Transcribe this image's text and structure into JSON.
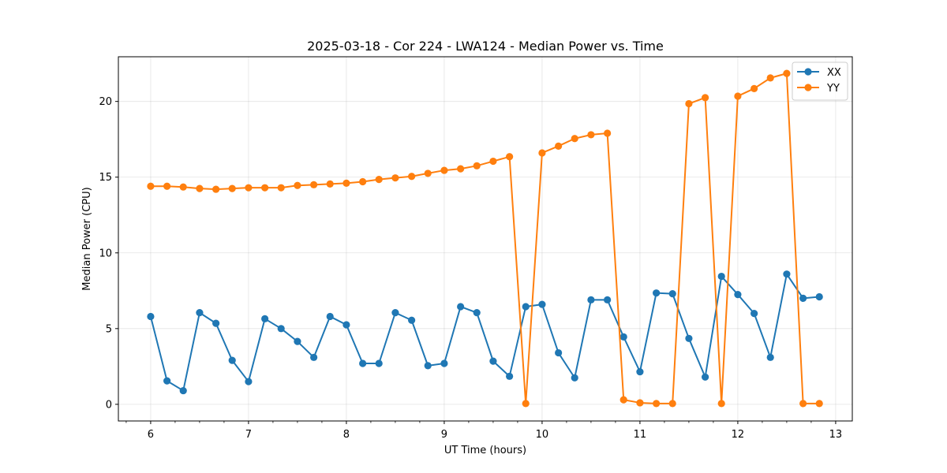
{
  "chart_data": {
    "type": "line",
    "title": "2025-03-18 - Cor 224 - LWA124 - Median Power vs. Time",
    "xlabel": "UT Time (hours)",
    "ylabel": "Median Power (CPU)",
    "xlim": [
      5.67,
      13.17
    ],
    "ylim": [
      -1.1,
      22.95
    ],
    "x_ticks": [
      6,
      7,
      8,
      9,
      10,
      11,
      12,
      13
    ],
    "y_ticks": [
      0,
      5,
      10,
      15,
      20
    ],
    "x_minor_step": 0.25,
    "grid": true,
    "legend_position": "top-right",
    "x": [
      6.0,
      6.167,
      6.333,
      6.5,
      6.667,
      6.833,
      7.0,
      7.167,
      7.333,
      7.5,
      7.667,
      7.833,
      8.0,
      8.167,
      8.333,
      8.5,
      8.667,
      8.833,
      9.0,
      9.167,
      9.333,
      9.5,
      9.667,
      9.833,
      10.0,
      10.167,
      10.333,
      10.5,
      10.667,
      10.833,
      11.0,
      11.167,
      11.333,
      11.5,
      11.667,
      11.833,
      12.0,
      12.167,
      12.333,
      12.5,
      12.667,
      12.833
    ],
    "series": [
      {
        "name": "XX",
        "color": "#1f77b4",
        "values": [
          5.8,
          1.55,
          0.9,
          6.05,
          5.35,
          2.9,
          1.5,
          5.65,
          5.0,
          4.15,
          3.1,
          5.8,
          5.25,
          2.7,
          2.7,
          6.05,
          5.55,
          2.55,
          2.7,
          6.45,
          6.05,
          2.85,
          1.85,
          6.45,
          6.6,
          3.4,
          1.75,
          6.9,
          6.9,
          4.45,
          2.15,
          7.35,
          7.3,
          4.35,
          1.8,
          8.45,
          7.25,
          6.0,
          3.1,
          8.6,
          7.0,
          7.1
        ]
      },
      {
        "name": "YY",
        "color": "#ff7f0e",
        "values": [
          14.4,
          14.4,
          14.35,
          14.25,
          14.2,
          14.25,
          14.3,
          14.3,
          14.3,
          14.45,
          14.5,
          14.55,
          14.6,
          14.7,
          14.85,
          14.95,
          15.05,
          15.25,
          15.45,
          15.55,
          15.75,
          16.05,
          16.35,
          0.05,
          16.6,
          17.05,
          17.55,
          17.8,
          17.9,
          0.3,
          0.1,
          0.05,
          0.05,
          19.85,
          20.25,
          0.05,
          20.35,
          20.85,
          21.55,
          21.85,
          0.05,
          0.05
        ]
      }
    ]
  }
}
